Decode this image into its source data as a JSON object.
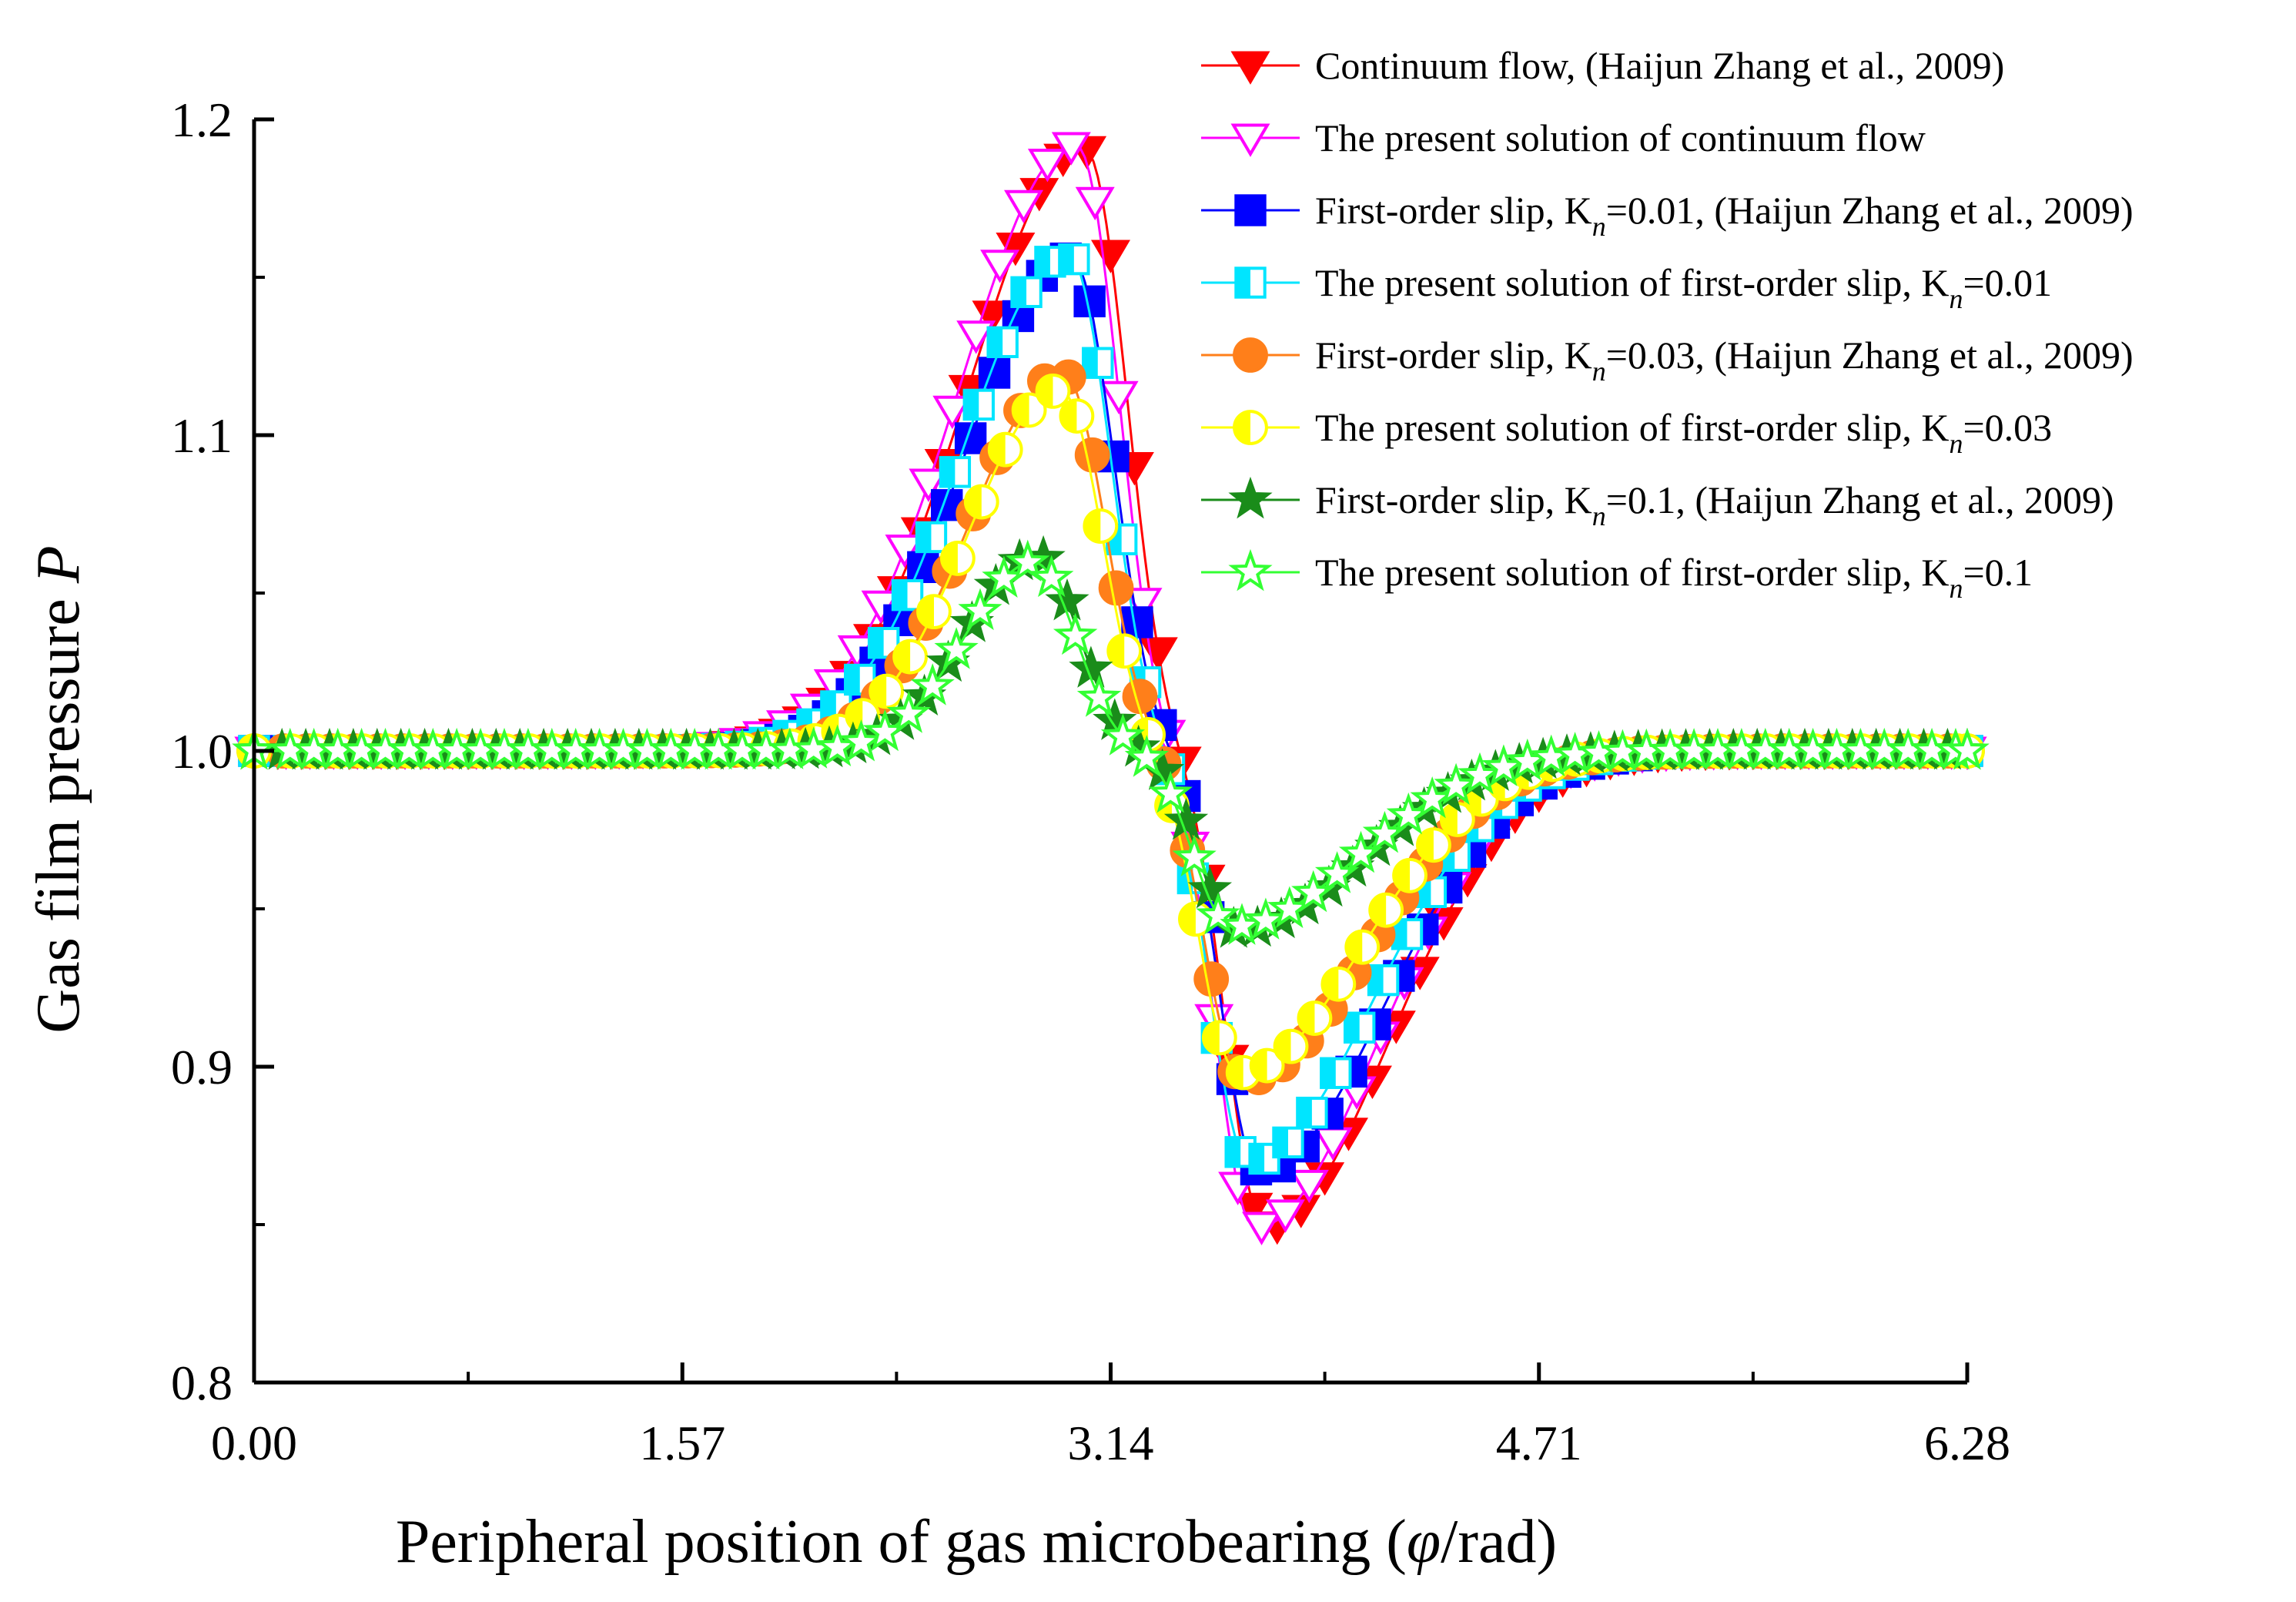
{
  "chart_data": {
    "type": "line",
    "title": "",
    "xlabel": "Peripheral position of gas microbearing (φ/rad)",
    "xlabel_parts": {
      "prefix": "Peripheral position of gas microbearing (",
      "symbol": "φ",
      "suffix": "/rad)"
    },
    "ylabel": "Gas film pressure P",
    "ylabel_parts": {
      "prefix": "Gas film pressure ",
      "symbol": "P"
    },
    "xlim": [
      0,
      6.28
    ],
    "ylim": [
      0.8,
      1.2
    ],
    "x_ticks": [
      0.0,
      1.57,
      3.14,
      4.71,
      6.28
    ],
    "x_tick_labels": [
      "0.00",
      "1.57",
      "3.14",
      "4.71",
      "6.28"
    ],
    "x_minor_ticks": [
      0.785,
      2.355,
      3.925,
      5.495
    ],
    "y_ticks": [
      0.8,
      0.9,
      1.0,
      1.1,
      1.2
    ],
    "y_tick_labels": [
      "0.8",
      "0.9",
      "1.0",
      "1.1",
      "1.2"
    ],
    "y_minor_ticks": [
      0.85,
      0.95,
      1.05,
      1.15
    ],
    "grid": false,
    "legend_position": "top-right",
    "series": [
      {
        "name": "Continuum flow, (Haijun Zhang et al., 2009)",
        "legend": {
          "before": "Continuum flow, (Haijun Zhang et al., 2009)",
          "sub": "",
          "after": ""
        },
        "color": "#ff0000",
        "marker": "triangle-down",
        "fill": "solid",
        "marker_offset": 0.0,
        "peak": {
          "x": 3.05,
          "y": 1.192
        },
        "trough": {
          "x": 3.7,
          "y": 0.848
        },
        "mid_x": 3.38
      },
      {
        "name": "The present solution of continuum flow",
        "legend": {
          "before": "The present solution of continuum flow",
          "sub": "",
          "after": ""
        },
        "color": "#ff00ff",
        "marker": "triangle-down",
        "fill": "hollow",
        "marker_offset": 0.03,
        "peak": {
          "x": 3.02,
          "y": 1.193
        },
        "trough": {
          "x": 3.66,
          "y": 0.848
        },
        "mid_x": 3.35
      },
      {
        "name": "First-order slip, Kn=0.01, (Haijun Zhang et al., 2009)",
        "legend": {
          "before": "First-order slip, K",
          "sub": "n",
          "after": "=0.01, (Haijun Zhang et al., 2009)"
        },
        "color": "#0000ff",
        "marker": "square",
        "fill": "solid",
        "marker_offset": 0.01,
        "peak": {
          "x": 3.0,
          "y": 1.157
        },
        "trough": {
          "x": 3.68,
          "y": 0.866
        },
        "mid_x": 3.35
      },
      {
        "name": "The present solution of first-order slip, Kn=0.01",
        "legend": {
          "before": "The present solution of first-order slip, K",
          "sub": "n",
          "after": "=0.01"
        },
        "color": "#00e5ff",
        "marker": "square",
        "fill": "half",
        "marker_offset": 0.04,
        "peak": {
          "x": 2.99,
          "y": 1.158
        },
        "trough": {
          "x": 3.64,
          "y": 0.869
        },
        "mid_x": 3.33
      },
      {
        "name": "First-order slip, Kn=0.03, (Haijun Zhang et al., 2009)",
        "legend": {
          "before": "First-order slip, K",
          "sub": "n",
          "after": "=0.03, (Haijun Zhang et al., 2009)"
        },
        "color": "#ff7f1a",
        "marker": "circle",
        "fill": "solid",
        "marker_offset": 0.02,
        "peak": {
          "x": 2.97,
          "y": 1.12
        },
        "trough": {
          "x": 3.62,
          "y": 0.895
        },
        "mid_x": 3.32
      },
      {
        "name": "The present solution of first-order slip, Kn=0.03",
        "legend": {
          "before": "The present solution of first-order slip, K",
          "sub": "n",
          "after": "=0.03"
        },
        "color": "#ffff00",
        "marker": "circle",
        "fill": "half",
        "marker_offset": 0.05,
        "peak": {
          "x": 2.96,
          "y": 1.115
        },
        "trough": {
          "x": 3.6,
          "y": 0.897
        },
        "mid_x": 3.3
      },
      {
        "name": "First-order slip, Kn=0.1, (Haijun Zhang et al., 2009)",
        "legend": {
          "before": "First-order slip, K",
          "sub": "n",
          "after": "=0.1, (Haijun Zhang et al., 2009)"
        },
        "color": "#1a8c1a",
        "marker": "star",
        "fill": "solid",
        "marker_offset": 0.015,
        "peak": {
          "x": 2.87,
          "y": 1.062
        },
        "trough": {
          "x": 3.6,
          "y": 0.943
        },
        "mid_x": 3.26
      },
      {
        "name": "The present solution of first-order slip, Kn=0.1",
        "legend": {
          "before": "The present solution of first-order slip, K",
          "sub": "n",
          "after": "=0.1"
        },
        "color": "#33ff33",
        "marker": "star",
        "fill": "hollow",
        "marker_offset": 0.045,
        "peak": {
          "x": 2.86,
          "y": 1.06
        },
        "trough": {
          "x": 3.58,
          "y": 0.944
        },
        "mid_x": 3.25
      }
    ]
  }
}
